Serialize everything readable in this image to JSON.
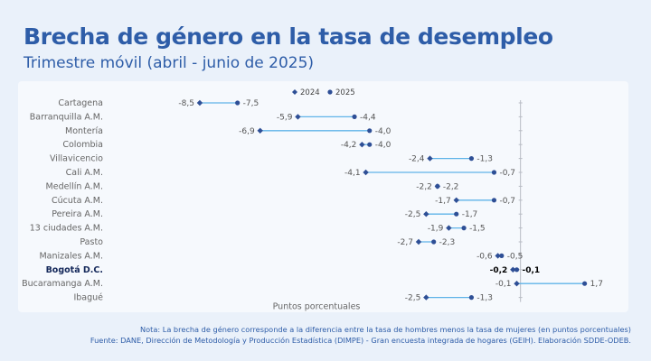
{
  "title": "Brecha de género en la tasa de desempleo",
  "subtitle": "Trimestre móvil (abril - junio de 2025)",
  "note": "Nota: La brecha de género corresponde a la diferencia entre la tasa de hombres menos la tasa de mujeres (en puntos porcentuales)",
  "source": "Fuente: DANE, Dirección de Metodología y Producción Estadística (DIMPE) - Gran encuesta integrada de hogares (GEIH). Elaboración SDDE-ODEB.",
  "colors": {
    "title": "#2e5da8",
    "marker": "#2e4f96",
    "connector": "#5fb3e8",
    "highlight": "#14285a"
  },
  "chart_data": {
    "type": "dumbbell",
    "xlabel": "Puntos porcentuales",
    "xlim": [
      -10.2,
      2.5
    ],
    "grid": false,
    "legend_position": "top-center",
    "highlight_category": "Bogotá D.C.",
    "series": [
      {
        "name": "2024",
        "marker": "diamond"
      },
      {
        "name": "2025",
        "marker": "circle"
      }
    ],
    "categories": [
      "Cartagena",
      "Barranquilla A.M.",
      "Montería",
      "Colombia",
      "Villavicencio",
      "Cali A.M.",
      "Medellín A.M.",
      "Cúcuta A.M.",
      "Pereira A.M.",
      "13 ciudades A.M.",
      "Pasto",
      "Manizales A.M.",
      "Bogotá D.C.",
      "Bucaramanga A.M.",
      "Ibagué"
    ],
    "values_2024": [
      -8.5,
      -5.9,
      -6.9,
      -4.2,
      -2.4,
      -4.1,
      -2.2,
      -1.7,
      -2.5,
      -1.9,
      -2.7,
      -0.6,
      -0.2,
      -0.1,
      -2.5
    ],
    "values_2025": [
      -7.5,
      -4.4,
      -4.0,
      -4.0,
      -1.3,
      -0.7,
      -2.2,
      -0.7,
      -1.7,
      -1.5,
      -2.3,
      -0.5,
      -0.1,
      1.7,
      -1.3
    ],
    "labels_2024": [
      "-8,5",
      "-5,9",
      "-6,9",
      "-4,2",
      "-2,4",
      "-4,1",
      "-2,2",
      "-1,7",
      "-2,5",
      "-1,9",
      "-2,7",
      "-0,6",
      "-0,2",
      "-0,1",
      "-2,5"
    ],
    "labels_2025": [
      "-7,5",
      "-4,4",
      "-4,0",
      "-4,0",
      "-1,3",
      "-0,7",
      "-2,2",
      "-0,7",
      "-1,7",
      "-1,5",
      "-2,3",
      "-0,5",
      "-0,1",
      "1,7",
      "-1,3"
    ]
  }
}
